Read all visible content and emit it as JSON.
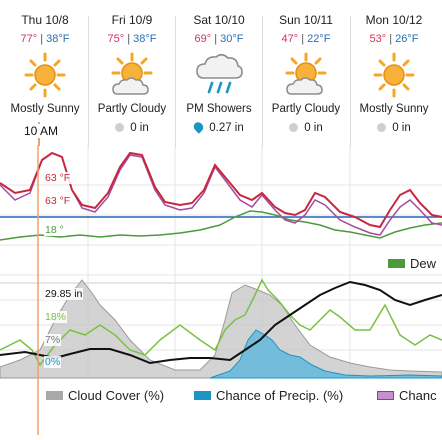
{
  "days": [
    {
      "name": "Thu 10/8",
      "hi": "77°",
      "lo": "38°F",
      "icon": "sun-icon",
      "condition": "Mostly Sunny",
      "precip": "",
      "precip_icon": "none"
    },
    {
      "name": "Fri 10/9",
      "hi": "75°",
      "lo": "38°F",
      "icon": "partly-cloudy-icon",
      "condition": "Partly Cloudy",
      "precip": "0 in",
      "precip_icon": "dot"
    },
    {
      "name": "Sat 10/10",
      "hi": "69°",
      "lo": "30°F",
      "icon": "rain-cloud-icon",
      "condition": "PM Showers",
      "precip": "0.27 in",
      "precip_icon": "drop"
    },
    {
      "name": "Sun 10/11",
      "hi": "47°",
      "lo": "22°F",
      "icon": "partly-cloudy-icon",
      "condition": "Partly Cloudy",
      "precip": "0 in",
      "precip_icon": "dot"
    },
    {
      "name": "Mon 10/12",
      "hi": "53°",
      "lo": "26°F",
      "icon": "sun-icon",
      "condition": "Mostly Sunny",
      "precip": "0 in",
      "precip_icon": "dot"
    }
  ],
  "cursor_time": "10 AM",
  "temp_chart": {
    "temp_label": "63 °F",
    "feels_label": "63 °F",
    "dew_label": "18 °",
    "legend_dew": "Dew"
  },
  "lower_chart": {
    "pressure_label": "29.85 in",
    "humidity_label": "18%",
    "cloud_label": "7%",
    "precip_label": "0%"
  },
  "legend": {
    "cloud_cover": "Cloud Cover (%)",
    "chance_precip": "Chance of Precip. (%)",
    "chance_other": "Chanc"
  },
  "colors": {
    "hi": "#d6305c",
    "lo": "#2b6fb6",
    "temp_line": "#c8283e",
    "feels_line": "#a54aa0",
    "dew_line": "#4c9a3c",
    "freeze_line": "#2566b8",
    "cursor": "#f0a070",
    "cloud": "#c8c8c8",
    "precip": "#5bb8dd",
    "humidity": "#7ac142",
    "pressure": "#111111"
  }
}
